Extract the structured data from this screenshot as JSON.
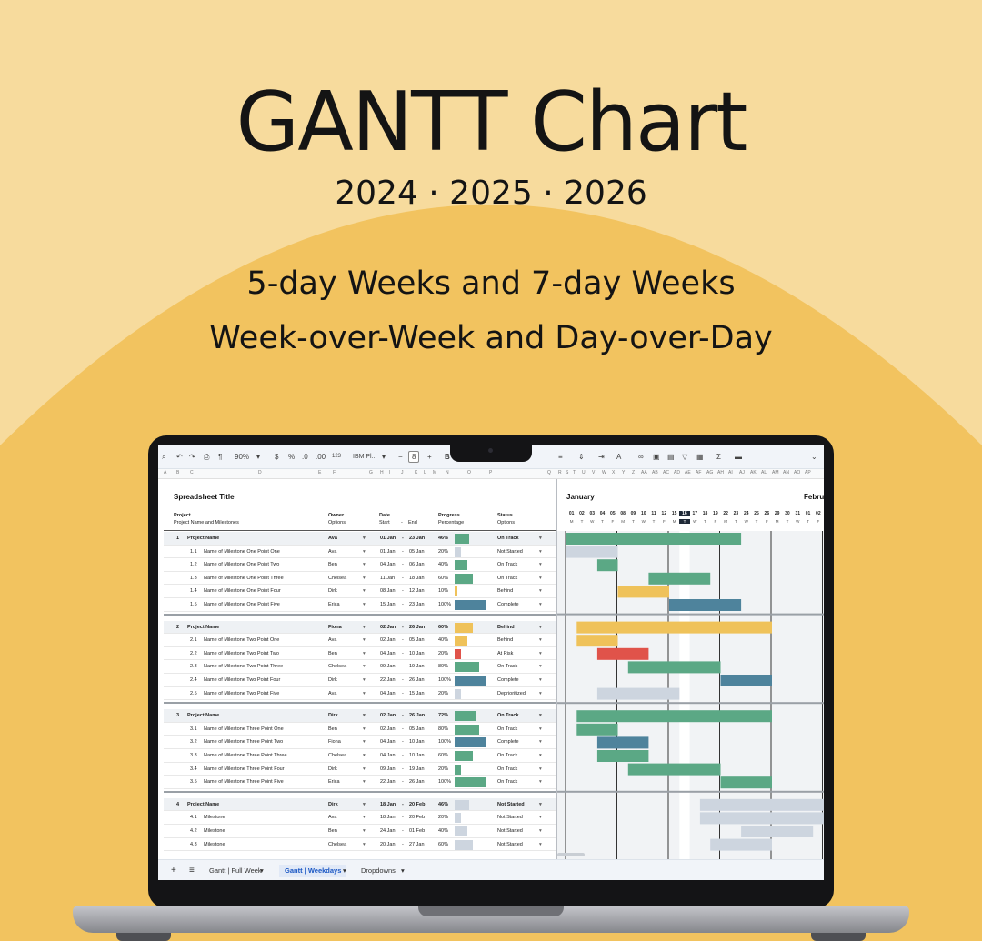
{
  "hero": {
    "title": "GANTT Chart",
    "years": "2024 · 2025 · 2026",
    "line1": "5-day Weeks and 7-day Weeks",
    "line2": "Week-over-Week and Day-over-Day"
  },
  "colors": {
    "page_bg": "#F7DB9D",
    "arc": "#F2C35F",
    "green": "#5BA885",
    "blue": "#4E839C",
    "yellow": "#EFC25A",
    "red": "#E0534A",
    "gray": "#CDD5DF"
  },
  "toolbar": {
    "zoom": "90%",
    "currency": "$",
    "percent": "%",
    "dec_less": ".0",
    "dec_more": ".00",
    "format_123": "123",
    "font": "IBM Pl...",
    "font_size": "8",
    "bold": "B"
  },
  "columns": [
    "A",
    "B",
    "C",
    "D",
    "E",
    "F",
    "G",
    "H",
    "I",
    "J",
    "K",
    "L",
    "M",
    "N",
    "O",
    "P",
    "Q",
    "R",
    "S",
    "T",
    "U",
    "V",
    "W",
    "X",
    "Y",
    "Z",
    "AA",
    "AB",
    "AC",
    "AD",
    "AE",
    "AF",
    "AG",
    "AH",
    "AI",
    "AJ",
    "AK",
    "AL",
    "AM",
    "AN",
    "AO",
    "AP"
  ],
  "sheet": {
    "title": "Spreadsheet Title",
    "header": {
      "project": "Project",
      "project_sub": "Project Name and Milestones",
      "owner": "Owner",
      "owner_sub": "Options",
      "date": "Date",
      "start": "Start",
      "dash": "-",
      "end": "End",
      "progress": "Progress",
      "progress_sub": "Percentage",
      "status": "Status",
      "status_sub": "Options"
    },
    "month1": "January",
    "month2": "Febru",
    "days": [
      "01",
      "02",
      "03",
      "04",
      "05",
      "08",
      "09",
      "10",
      "11",
      "12",
      "15",
      "16",
      "17",
      "18",
      "19",
      "22",
      "23",
      "24",
      "25",
      "26",
      "29",
      "30",
      "31",
      "01",
      "02"
    ],
    "daylabels": [
      "M",
      "T",
      "W",
      "T",
      "F",
      "M",
      "T",
      "W",
      "T",
      "F",
      "M",
      "T",
      "W",
      "T",
      "F",
      "M",
      "T",
      "W",
      "T",
      "F",
      "M",
      "T",
      "W",
      "T",
      "F"
    ],
    "today": "16",
    "groups": [
      {
        "rows": [
          {
            "num": "1",
            "name": "Project Name",
            "owner": "Ava",
            "start": "01 Jan",
            "end": "23 Jan",
            "pct": "46%",
            "p": 46,
            "status": "On Track"
          },
          {
            "num": "1.1",
            "name": "Name of Milestone One Point One",
            "owner": "Ava",
            "start": "01 Jan",
            "end": "05 Jan",
            "pct": "20%",
            "p": 20,
            "status": "Not Started"
          },
          {
            "num": "1.2",
            "name": "Name of Milestone One Point Two",
            "owner": "Ben",
            "start": "04 Jan",
            "end": "06 Jan",
            "pct": "40%",
            "p": 40,
            "status": "On Track"
          },
          {
            "num": "1.3",
            "name": "Name of Milestone One Point Three",
            "owner": "Chelsea",
            "start": "11 Jan",
            "end": "18 Jan",
            "pct": "60%",
            "p": 60,
            "status": "On Track"
          },
          {
            "num": "1.4",
            "name": "Name of Milestone One Point Four",
            "owner": "Dirk",
            "start": "08 Jan",
            "end": "12 Jan",
            "pct": "10%",
            "p": 10,
            "status": "Behind"
          },
          {
            "num": "1.5",
            "name": "Name of Milestone One Point Five",
            "owner": "Erica",
            "start": "15 Jan",
            "end": "23 Jan",
            "pct": "100%",
            "p": 100,
            "status": "Complete"
          }
        ]
      },
      {
        "rows": [
          {
            "num": "2",
            "name": "Project Name",
            "owner": "Fiona",
            "start": "02 Jan",
            "end": "26 Jan",
            "pct": "60%",
            "p": 60,
            "status": "Behind"
          },
          {
            "num": "2.1",
            "name": "Name of Milestone Two Point One",
            "owner": "Ava",
            "start": "02 Jan",
            "end": "05 Jan",
            "pct": "40%",
            "p": 40,
            "status": "Behind"
          },
          {
            "num": "2.2",
            "name": "Name of Milestone Two Point Two",
            "owner": "Ben",
            "start": "04 Jan",
            "end": "10 Jan",
            "pct": "20%",
            "p": 20,
            "status": "At Risk"
          },
          {
            "num": "2.3",
            "name": "Name of Milestone Two Point Three",
            "owner": "Chelsea",
            "start": "09 Jan",
            "end": "19 Jan",
            "pct": "80%",
            "p": 80,
            "status": "On Track"
          },
          {
            "num": "2.4",
            "name": "Name of Milestone Two Point Four",
            "owner": "Dirk",
            "start": "22 Jan",
            "end": "26 Jan",
            "pct": "100%",
            "p": 100,
            "status": "Complete"
          },
          {
            "num": "2.5",
            "name": "Name of Milestone Two Point Five",
            "owner": "Ava",
            "start": "04 Jan",
            "end": "15 Jan",
            "pct": "20%",
            "p": 20,
            "status": "Deprioritized"
          }
        ]
      },
      {
        "rows": [
          {
            "num": "3",
            "name": "Project Name",
            "owner": "Dirk",
            "start": "02 Jan",
            "end": "26 Jan",
            "pct": "72%",
            "p": 72,
            "status": "On Track"
          },
          {
            "num": "3.1",
            "name": "Name of Milestone Three Point One",
            "owner": "Ben",
            "start": "02 Jan",
            "end": "05 Jan",
            "pct": "80%",
            "p": 80,
            "status": "On Track"
          },
          {
            "num": "3.2",
            "name": "Name of Milestone Three Point Two",
            "owner": "Fiona",
            "start": "04 Jan",
            "end": "10 Jan",
            "pct": "100%",
            "p": 100,
            "status": "Complete"
          },
          {
            "num": "3.3",
            "name": "Name of Milestone Three Point Three",
            "owner": "Chelsea",
            "start": "04 Jan",
            "end": "10 Jan",
            "pct": "60%",
            "p": 60,
            "status": "On Track"
          },
          {
            "num": "3.4",
            "name": "Name of Milestone Three Point Four",
            "owner": "Dirk",
            "start": "09 Jan",
            "end": "19 Jan",
            "pct": "20%",
            "p": 20,
            "status": "On Track"
          },
          {
            "num": "3.5",
            "name": "Name of Milestone Three Point Five",
            "owner": "Erica",
            "start": "22 Jan",
            "end": "26 Jan",
            "pct": "100%",
            "p": 100,
            "status": "On Track"
          }
        ]
      },
      {
        "rows": [
          {
            "num": "4",
            "name": "Project Name",
            "owner": "Dirk",
            "start": "18 Jan",
            "end": "20 Feb",
            "pct": "46%",
            "p": 46,
            "status": "Not Started"
          },
          {
            "num": "4.1",
            "name": "Milestone",
            "owner": "Ava",
            "start": "18 Jan",
            "end": "20 Feb",
            "pct": "20%",
            "p": 20,
            "status": "Not Started"
          },
          {
            "num": "4.2",
            "name": "Milestone",
            "owner": "Ben",
            "start": "24 Jan",
            "end": "01 Feb",
            "pct": "40%",
            "p": 40,
            "status": "Not Started"
          },
          {
            "num": "4.3",
            "name": "Milestone",
            "owner": "Chelsea",
            "start": "20 Jan",
            "end": "27 Jan",
            "pct": "60%",
            "p": 60,
            "status": "Not Started"
          }
        ]
      }
    ]
  },
  "tabs": {
    "add": "+",
    "menu": "≡",
    "items": [
      "Gantt | Full Week",
      "Gantt | Weekdays",
      "Dropdowns"
    ],
    "active": 1
  }
}
